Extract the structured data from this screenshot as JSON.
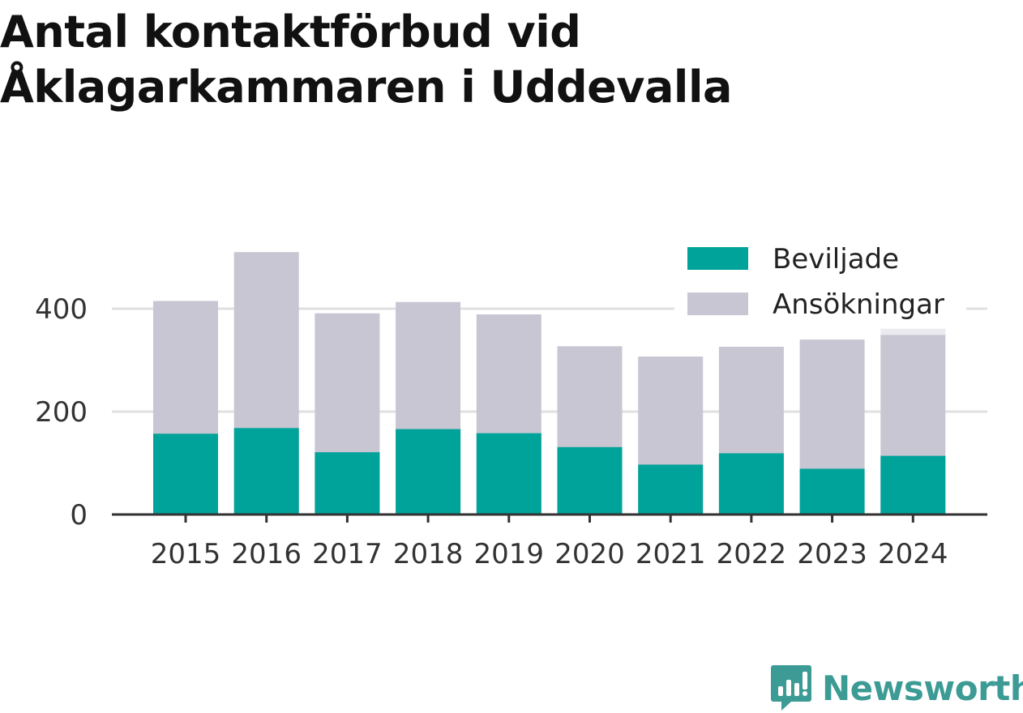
{
  "title": "Antal kontaktförbud vid Åklagarkammaren i Uddevalla",
  "brand": {
    "name": "Newsworthy",
    "icon": "newsworthy-logo-icon",
    "color": "#3d9b95"
  },
  "chart_data": {
    "type": "bar",
    "stacked": false,
    "overlapping": true,
    "categories": [
      "2015",
      "2016",
      "2017",
      "2018",
      "2019",
      "2020",
      "2021",
      "2022",
      "2023",
      "2024"
    ],
    "series": [
      {
        "name": "Beviljade",
        "color": "#00a39a",
        "values": [
          157,
          168,
          121,
          166,
          158,
          131,
          97,
          119,
          89,
          114
        ]
      },
      {
        "name": "Ansökningar",
        "color": "#c8c6d2",
        "values": [
          415,
          510,
          391,
          413,
          389,
          327,
          307,
          326,
          340,
          349
        ]
      }
    ],
    "partial_last_category": true,
    "ylim": [
      0,
      520
    ],
    "yticks": [
      0,
      200,
      400
    ],
    "xlabel": "",
    "ylabel": "",
    "grid": true,
    "legend_position": "top-right"
  }
}
